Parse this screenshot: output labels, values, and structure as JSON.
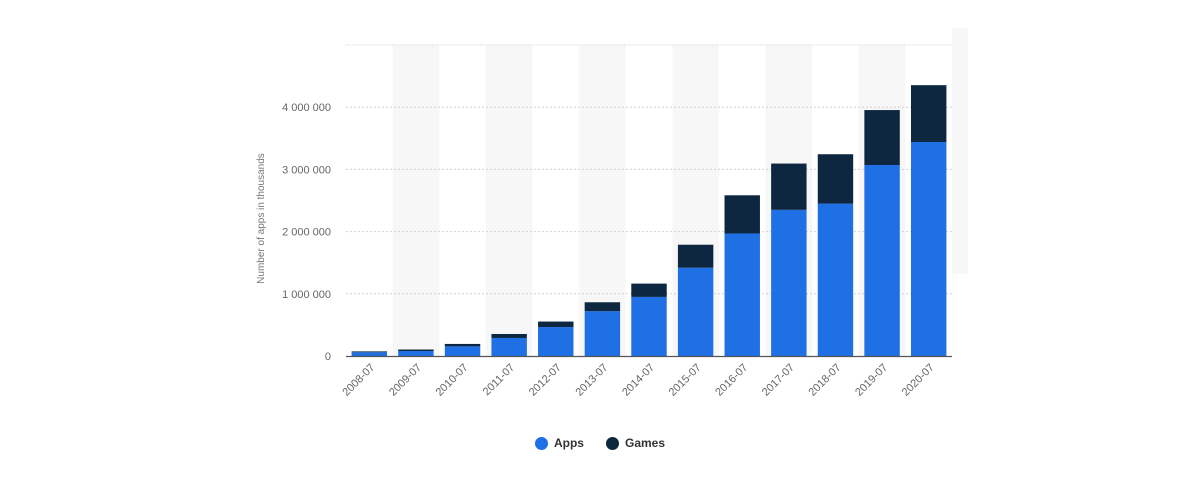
{
  "chart_data": {
    "type": "bar",
    "stacked": true,
    "title": "",
    "xlabel": "",
    "ylabel": "Number of apps in thousands",
    "ylim": [
      0,
      5000000
    ],
    "yticks": [
      0,
      1000000,
      2000000,
      3000000,
      4000000
    ],
    "ytick_labels": [
      "0",
      "1 000 000",
      "2 000 000",
      "3 000 000",
      "4 000 000"
    ],
    "grid": true,
    "legend_position": "bottom-center",
    "categories": [
      "2008-07",
      "2009-07",
      "2010-07",
      "2011-07",
      "2012-07",
      "2013-07",
      "2014-07",
      "2015-07",
      "2016-07",
      "2017-07",
      "2018-07",
      "2019-07",
      "2020-07"
    ],
    "series": [
      {
        "name": "Apps",
        "color": "#1f6fe5",
        "values": [
          60000,
          80000,
          155000,
          290000,
          465000,
          720000,
          950000,
          1420000,
          1970000,
          2350000,
          2450000,
          3070000,
          3440000
        ]
      },
      {
        "name": "Games",
        "color": "#0d2740",
        "values": [
          30000,
          40000,
          55000,
          80000,
          105000,
          160000,
          230000,
          385000,
          630000,
          760000,
          810000,
          900000,
          930000
        ]
      }
    ]
  }
}
